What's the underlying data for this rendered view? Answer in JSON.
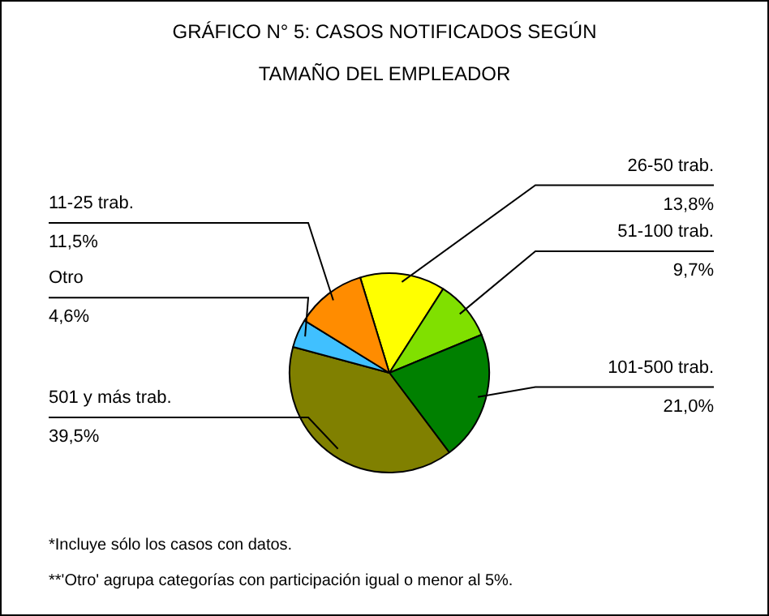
{
  "chart_data": {
    "type": "pie",
    "title": "GRÁFICO N° 5: CASOS NOTIFICADOS SEGÚN TAMAÑO DEL EMPLEADOR",
    "categories": [
      "26-50 trab.",
      "51-100 trab.",
      "101-500 trab.",
      "501 y más trab.",
      "Otro",
      "11-25 trab."
    ],
    "values": [
      13.8,
      9.7,
      21.0,
      39.5,
      4.6,
      11.5
    ],
    "value_labels": [
      "13,8%",
      "9,7%",
      "21,0%",
      "39,5%",
      "4,6%",
      "11,5%"
    ],
    "colors": [
      "#ffff00",
      "#80e000",
      "#008000",
      "#808000",
      "#40c0ff",
      "#ff8c00"
    ],
    "annotations": [
      "*Incluye sólo los casos con datos.",
      "**'Otro' agrupa categorías con participación igual o menor al 5%."
    ]
  }
}
